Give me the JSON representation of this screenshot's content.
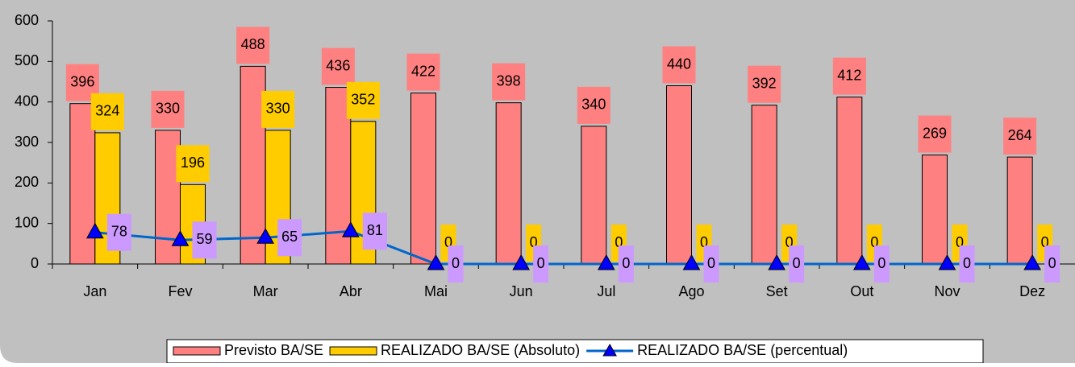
{
  "chart_data": {
    "type": "bar_line",
    "categories": [
      "Jan",
      "Fev",
      "Mar",
      "Abr",
      "Mai",
      "Jun",
      "Jul",
      "Ago",
      "Set",
      "Out",
      "Nov",
      "Dez"
    ],
    "series": [
      {
        "name": "Previsto BA/SE",
        "type": "bar",
        "color": "#ff8080",
        "values": [
          396,
          330,
          488,
          436,
          422,
          398,
          340,
          440,
          392,
          412,
          269,
          264
        ]
      },
      {
        "name": "REALIZADO BA/SE (Absoluto)",
        "type": "bar",
        "color": "#ffcc00",
        "values": [
          324,
          196,
          330,
          352,
          0,
          0,
          0,
          0,
          0,
          0,
          0,
          0
        ]
      },
      {
        "name": "REALIZADO BA/SE (percentual)",
        "type": "line",
        "color": "#0066cc",
        "label_color": "#cc99ff",
        "values": [
          78,
          59,
          65,
          81,
          0,
          0,
          0,
          0,
          0,
          0,
          0,
          0
        ]
      }
    ],
    "ylim": [
      0,
      600
    ],
    "yticks": [
      0,
      100,
      200,
      300,
      400,
      500,
      600
    ],
    "legend": "bottom"
  }
}
